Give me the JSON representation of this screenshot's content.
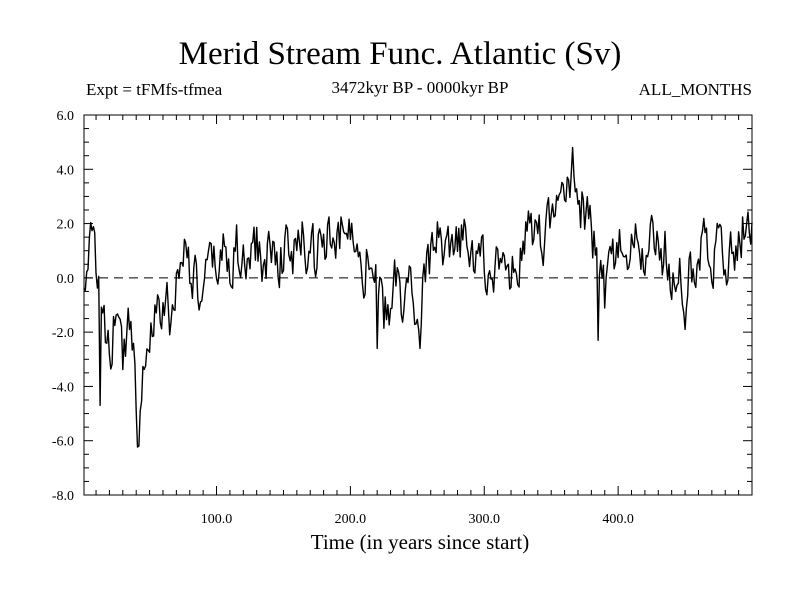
{
  "chart_data": {
    "type": "line",
    "title": "Merid Stream Func. Atlantic (Sv)",
    "subtitle_left": "Expt = tFMfs-tfmea",
    "subtitle_center": "3472kyr BP - 0000kyr BP",
    "subtitle_right": "ALL_MONTHS",
    "xlabel": "Time (in years since start)",
    "ylabel": "",
    "xlim": [
      1,
      500
    ],
    "ylim": [
      -8.0,
      6.0
    ],
    "xticks": [
      100,
      200,
      300,
      400
    ],
    "xtick_labels": [
      "100.0",
      "200.0",
      "300.0",
      "400.0"
    ],
    "yticks": [
      -8,
      -6,
      -4,
      -2,
      0,
      2,
      4,
      6
    ],
    "ytick_labels": [
      "-8.0",
      "-6.0",
      "-4.0",
      "-2.0",
      "0.0",
      "2.0",
      "4.0",
      "6.0"
    ],
    "reference_line": {
      "y": 0.0,
      "style": "dashed"
    },
    "anchors": {
      "x": [
        1,
        3,
        6,
        9,
        12,
        15,
        18,
        22,
        25,
        27,
        30,
        33,
        36,
        39,
        41,
        43,
        46,
        49,
        53,
        58,
        63,
        67,
        71,
        75,
        78,
        82,
        86,
        90,
        95,
        100,
        105,
        110,
        115,
        120,
        125,
        130,
        135,
        140,
        145,
        150,
        155,
        160,
        165,
        170,
        175,
        180,
        185,
        190,
        195,
        200,
        205,
        210,
        215,
        220,
        225,
        230,
        235,
        240,
        245,
        250,
        255,
        260,
        265,
        270,
        275,
        280,
        285,
        290,
        295,
        300,
        305,
        310,
        315,
        320,
        325,
        330,
        335,
        340,
        345,
        350,
        355,
        360,
        363,
        366,
        370,
        375,
        380,
        385,
        390,
        395,
        400,
        405,
        410,
        415,
        420,
        425,
        430,
        435,
        440,
        445,
        450,
        455,
        460,
        465,
        470,
        475,
        480,
        485,
        490,
        495,
        500
      ],
      "y": [
        -0.7,
        0.6,
        1.3,
        0.3,
        0.9,
        -1.2,
        -3.2,
        -2.8,
        -0.6,
        -2.2,
        -3.0,
        -1.8,
        -1.2,
        -3.0,
        -5.0,
        -3.5,
        -2.8,
        -2.4,
        -1.2,
        -1.6,
        -1.0,
        -1.4,
        0.2,
        1.6,
        0.6,
        0.2,
        -0.6,
        -0.8,
        0.2,
        0.4,
        0.9,
        0.6,
        1.2,
        0.2,
        0.9,
        1.2,
        0.4,
        1.1,
        0.8,
        1.1,
        0.6,
        1.0,
        1.4,
        1.0,
        0.6,
        1.6,
        1.2,
        0.9,
        2.0,
        1.5,
        2.2,
        0.6,
        1.3,
        -0.4,
        -1.6,
        -0.9,
        0.1,
        -1.2,
        -0.4,
        -1.1,
        0.3,
        0.6,
        1.2,
        0.8,
        0.4,
        0.9,
        1.5,
        0.6,
        1.1,
        0.4,
        0.1,
        0.8,
        0.3,
        -0.3,
        0.9,
        1.3,
        1.8,
        1.0,
        1.6,
        2.1,
        2.5,
        2.9,
        3.4,
        3.8,
        3.3,
        2.3,
        2.0,
        -0.1,
        -0.8,
        0.5,
        1.1,
        0.7,
        1.0,
        1.3,
        0.9,
        1.4,
        0.7,
        1.0,
        0.2,
        0.6,
        -0.2,
        0.3,
        1.2,
        1.6,
        1.0,
        1.3,
        0.9,
        1.1,
        1.6,
        1.8,
        1.5
      ]
    },
    "noise_amplitude": 0.95,
    "spikes": [
      {
        "x": 42,
        "y": -6.2
      },
      {
        "x": 366,
        "y": 4.8
      },
      {
        "x": 13,
        "y": -4.7
      },
      {
        "x": 220,
        "y": -2.6
      },
      {
        "x": 252,
        "y": -2.6
      },
      {
        "x": 385,
        "y": -2.3
      },
      {
        "x": 450,
        "y": -1.9
      }
    ]
  }
}
